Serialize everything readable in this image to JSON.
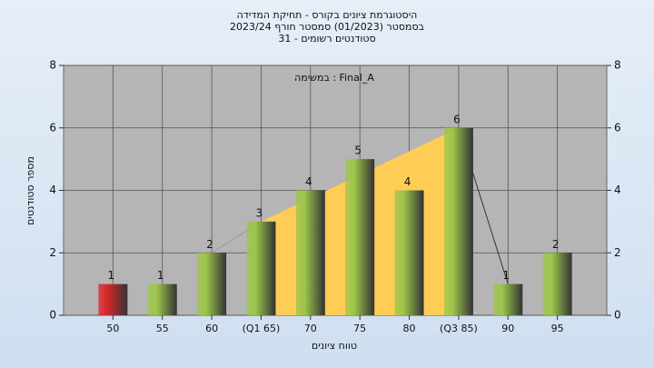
{
  "chart_data": {
    "type": "bar",
    "title": [
      "היסטוגרמת ציונים בקורס - תחיקת המדידה",
      "בסמסטר  (01/2023)  סמסטר חורף 2023/24",
      "סטודנטים רשומים - 31"
    ],
    "annotation": "במשימה : Final_A",
    "x_label": "טווח ציונים",
    "y_label": "מספר סטודנטים",
    "categories": [
      "50",
      "55",
      "60",
      "(Q1 65)",
      "70",
      "75",
      "80",
      "(Q3 85)",
      "90",
      "95"
    ],
    "values": [
      1,
      1,
      2,
      3,
      4,
      5,
      4,
      6,
      1,
      2
    ],
    "colors": [
      "#d8262a",
      "#9cc64a",
      "#9cc64a",
      "#9cc64a",
      "#9cc64a",
      "#9cc64a",
      "#9cc64a",
      "#9cc64a",
      "#9cc64a",
      "#9cc64a"
    ],
    "ylim": [
      0,
      8
    ],
    "yticks": [
      0,
      2,
      4,
      6,
      8
    ],
    "y2lim": [
      0,
      8
    ],
    "y2ticks": [
      0,
      2,
      4,
      6,
      8
    ],
    "grid": true
  }
}
